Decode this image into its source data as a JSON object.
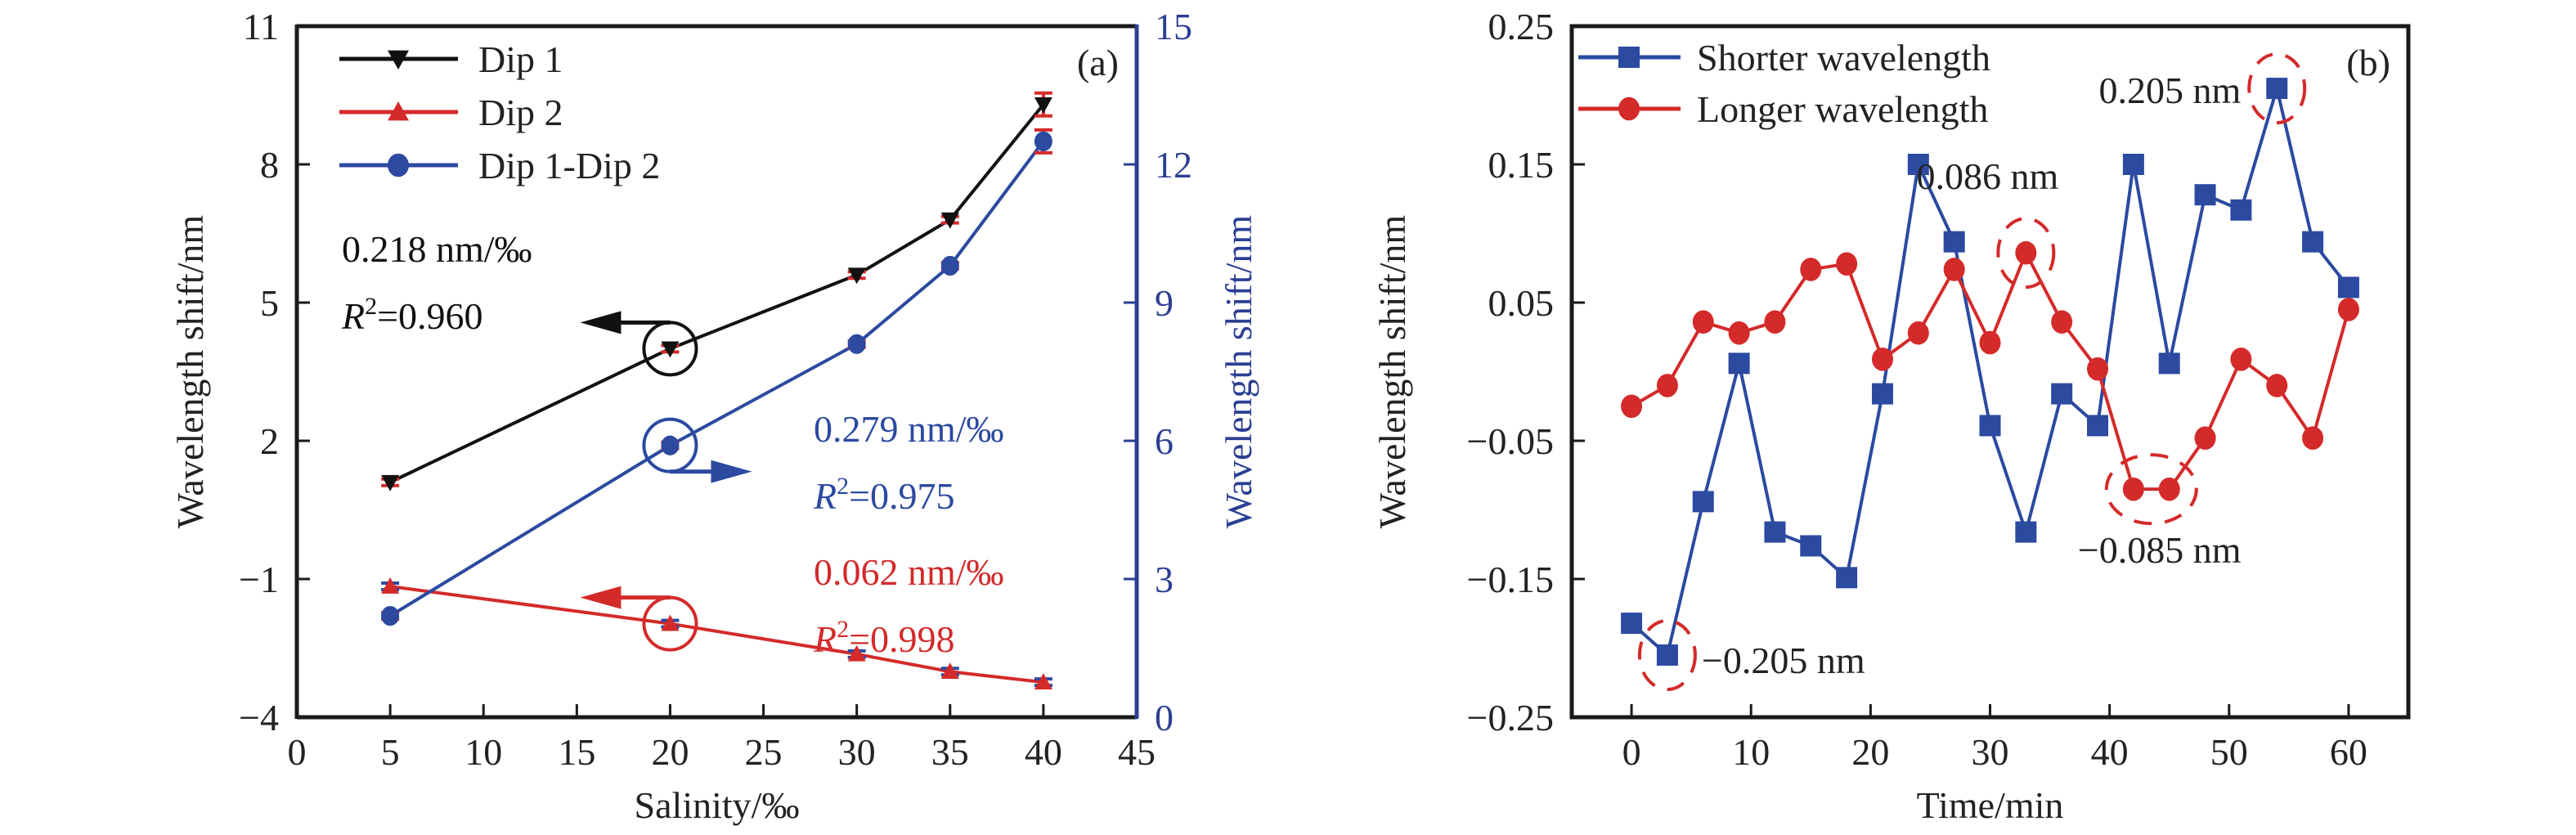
{
  "chart_data": [
    {
      "id": "a",
      "type": "line",
      "panel_label": "(a)",
      "xlabel": "Salinity/‰",
      "ylabel": "Wavelength shift/nm",
      "y2label": "Wavelength shift/nm",
      "xlim": [
        0,
        45
      ],
      "ylim": [
        -4,
        11
      ],
      "y2lim": [
        0,
        15
      ],
      "xticks": [
        0,
        5,
        10,
        15,
        20,
        25,
        30,
        35,
        40,
        45
      ],
      "yticks": [
        -4,
        -1,
        2,
        5,
        8,
        11
      ],
      "y2ticks": [
        0,
        3,
        6,
        9,
        12,
        15
      ],
      "ytick_labels": [
        "−4",
        "−1",
        "2",
        "5",
        "8",
        "11"
      ],
      "legend_position": "top-left",
      "colors": {
        "axis_left": "#1a1a1a",
        "axis_right": "#2b3f93"
      },
      "series": [
        {
          "name": "Dip 1",
          "axis": "left",
          "marker": "triangle-down",
          "color": "#111111",
          "x": [
            5,
            20,
            30,
            35,
            40
          ],
          "values": [
            1.1,
            4.0,
            5.6,
            6.8,
            9.3
          ]
        },
        {
          "name": "Dip 2",
          "axis": "left",
          "marker": "triangle-up",
          "color": "#d42a2a",
          "x": [
            5,
            20,
            30,
            35,
            40
          ],
          "values": [
            -1.16,
            -1.97,
            -2.63,
            -3.01,
            -3.24
          ]
        },
        {
          "name": "Dip 1-Dip 2",
          "axis": "right",
          "marker": "circle",
          "color": "#2b4aa0",
          "x": [
            5,
            20,
            30,
            35,
            40
          ],
          "values": [
            2.2,
            5.9,
            8.1,
            9.8,
            12.5
          ]
        }
      ],
      "annotations": [
        {
          "series": "Dip 1",
          "sensitivity": "0.218 nm/‰",
          "r2_label": "R",
          "r2_sup": "2",
          "r2_value": "=0.960",
          "color": "#111111",
          "arrow": "left",
          "circle_at": [
            20,
            4.0
          ]
        },
        {
          "series": "Dip 1-Dip 2",
          "sensitivity": "0.279 nm/‰",
          "r2_label": "R",
          "r2_sup": "2",
          "r2_value": "=0.975",
          "color": "#2b4aa0",
          "arrow": "right",
          "circle_at": [
            20,
            5.9
          ]
        },
        {
          "series": "Dip 2",
          "sensitivity": "0.062 nm/‰",
          "r2_label": "R",
          "r2_sup": "2",
          "r2_value": "=0.998",
          "color": "#d42a2a",
          "arrow": "left",
          "circle_at": [
            20,
            -1.97
          ]
        }
      ]
    },
    {
      "id": "b",
      "type": "line",
      "panel_label": "(b)",
      "xlabel": "Time/min",
      "ylabel": "Wavelength shift/nm",
      "xlim": [
        -5,
        65
      ],
      "ylim": [
        -0.25,
        0.25
      ],
      "xticks": [
        0,
        10,
        20,
        30,
        40,
        50,
        60
      ],
      "yticks": [
        -0.25,
        -0.15,
        -0.05,
        0.05,
        0.15,
        0.25
      ],
      "ytick_labels": [
        "−0.25",
        "−0.15",
        "−0.05",
        "0.05",
        "0.15",
        "0.25"
      ],
      "legend_position": "top-left",
      "series": [
        {
          "name": "Shorter wavelength",
          "marker": "square",
          "color": "#2b4aa0",
          "x": [
            0,
            3,
            6,
            9,
            12,
            15,
            18,
            21,
            24,
            27,
            30,
            33,
            36,
            39,
            42,
            45,
            48,
            51,
            54,
            57,
            60
          ],
          "values": [
            -0.182,
            -0.205,
            -0.094,
            0.006,
            -0.116,
            -0.126,
            -0.149,
            -0.016,
            0.15,
            0.094,
            -0.039,
            -0.116,
            -0.016,
            -0.039,
            0.15,
            0.006,
            0.128,
            0.117,
            0.205,
            0.094,
            0.061
          ]
        },
        {
          "name": "Longer wavelength",
          "marker": "circle",
          "color": "#d42a2a",
          "x": [
            0,
            3,
            6,
            9,
            12,
            15,
            18,
            21,
            24,
            27,
            30,
            33,
            36,
            39,
            42,
            45,
            48,
            51,
            54,
            57,
            60
          ],
          "values": [
            -0.025,
            -0.01,
            0.036,
            0.028,
            0.036,
            0.074,
            0.078,
            0.009,
            0.028,
            0.074,
            0.021,
            0.086,
            0.036,
            0.002,
            -0.085,
            -0.085,
            -0.048,
            0.009,
            -0.01,
            -0.048,
            0.045
          ]
        }
      ],
      "annotations": [
        {
          "text": "0.205 nm",
          "x": 54,
          "y": 0.205,
          "side": "left"
        },
        {
          "text": "0.086 nm",
          "x": 33,
          "y": 0.086,
          "side": "above-left"
        },
        {
          "text": "−0.085 nm",
          "x": 43.5,
          "y": -0.085,
          "side": "below"
        },
        {
          "text": "−0.205 nm",
          "x": 3,
          "y": -0.205,
          "side": "right"
        }
      ]
    }
  ]
}
